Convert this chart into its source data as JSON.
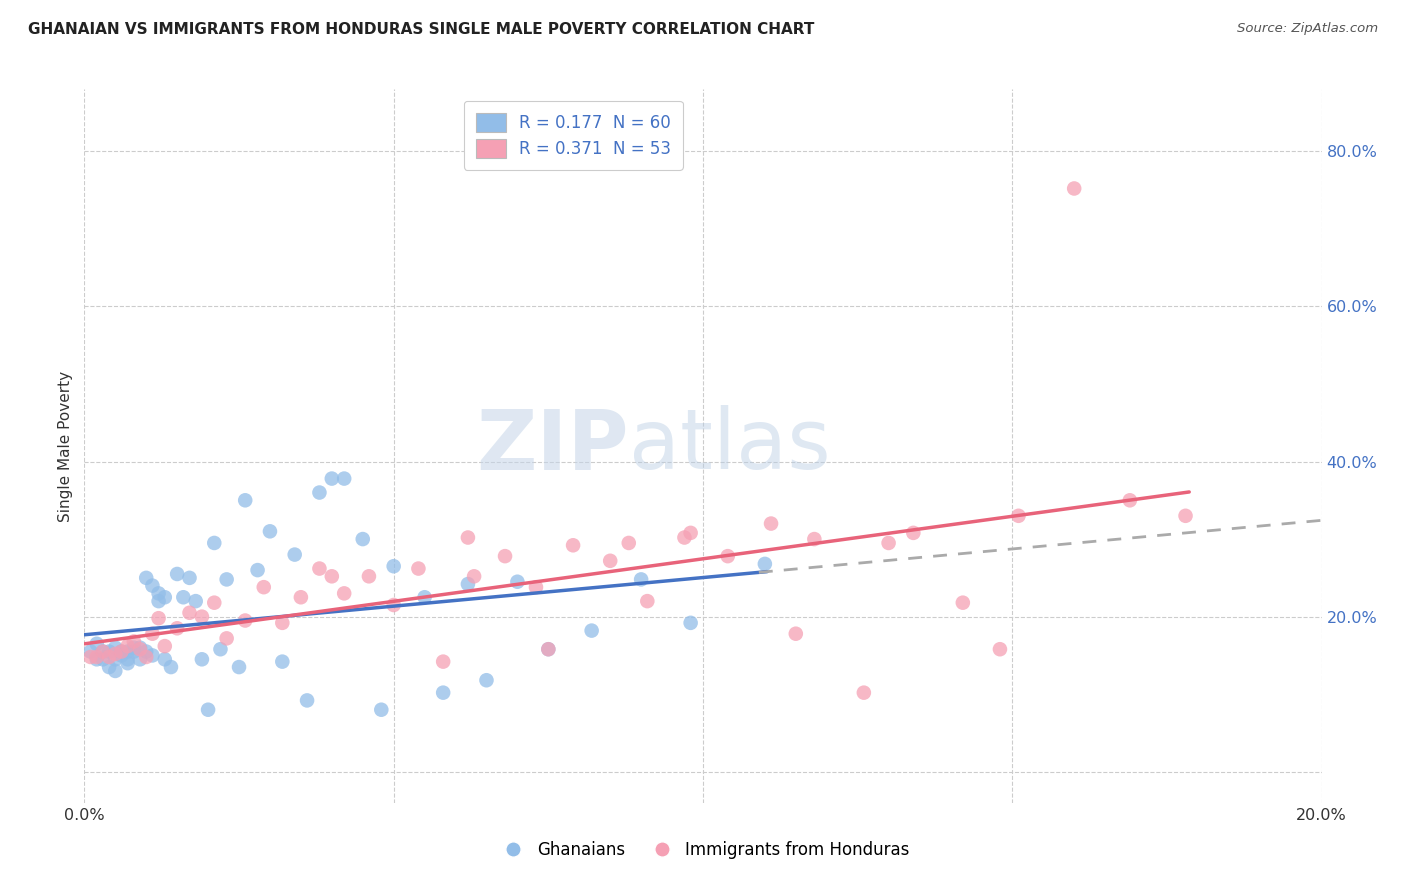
{
  "title": "GHANAIAN VS IMMIGRANTS FROM HONDURAS SINGLE MALE POVERTY CORRELATION CHART",
  "source": "Source: ZipAtlas.com",
  "ylabel": "Single Male Poverty",
  "ytick_vals": [
    0.0,
    0.2,
    0.4,
    0.6,
    0.8
  ],
  "ytick_labels": [
    "",
    "20.0%",
    "40.0%",
    "60.0%",
    "80.0%"
  ],
  "xtick_vals": [
    0.0,
    0.05,
    0.1,
    0.15,
    0.2
  ],
  "xtick_labels": [
    "0.0%",
    "",
    "",
    "",
    "20.0%"
  ],
  "xlim": [
    0.0,
    0.2
  ],
  "ylim": [
    -0.04,
    0.88
  ],
  "watermark_zip": "ZIP",
  "watermark_atlas": "atlas",
  "legend_label1": "R = 0.177  N = 60",
  "legend_label2": "R = 0.371  N = 53",
  "blue_color": "#92BDE8",
  "pink_color": "#F5A0B4",
  "line_blue": "#4472C4",
  "line_pink": "#E8637A",
  "line_dashed_color": "#AAAAAA",
  "legend_text_color": "#4472C4",
  "ytick_color": "#4472C4",
  "ghanaians_x": [
    0.001,
    0.002,
    0.002,
    0.003,
    0.003,
    0.004,
    0.004,
    0.005,
    0.005,
    0.005,
    0.006,
    0.006,
    0.007,
    0.007,
    0.007,
    0.008,
    0.008,
    0.009,
    0.009,
    0.01,
    0.01,
    0.011,
    0.011,
    0.012,
    0.012,
    0.013,
    0.013,
    0.014,
    0.015,
    0.016,
    0.017,
    0.018,
    0.019,
    0.02,
    0.021,
    0.022,
    0.023,
    0.025,
    0.026,
    0.028,
    0.03,
    0.032,
    0.034,
    0.036,
    0.038,
    0.04,
    0.042,
    0.045,
    0.048,
    0.05,
    0.055,
    0.058,
    0.062,
    0.065,
    0.07,
    0.075,
    0.082,
    0.09,
    0.098,
    0.11
  ],
  "ghanaians_y": [
    0.155,
    0.145,
    0.165,
    0.145,
    0.155,
    0.135,
    0.155,
    0.145,
    0.16,
    0.13,
    0.15,
    0.155,
    0.145,
    0.155,
    0.14,
    0.155,
    0.16,
    0.145,
    0.16,
    0.155,
    0.25,
    0.24,
    0.15,
    0.22,
    0.23,
    0.225,
    0.145,
    0.135,
    0.255,
    0.225,
    0.25,
    0.22,
    0.145,
    0.08,
    0.295,
    0.158,
    0.248,
    0.135,
    0.35,
    0.26,
    0.31,
    0.142,
    0.28,
    0.092,
    0.36,
    0.378,
    0.378,
    0.3,
    0.08,
    0.265,
    0.225,
    0.102,
    0.242,
    0.118,
    0.245,
    0.158,
    0.182,
    0.248,
    0.192,
    0.268
  ],
  "honduras_x": [
    0.001,
    0.002,
    0.003,
    0.004,
    0.005,
    0.006,
    0.007,
    0.008,
    0.009,
    0.01,
    0.011,
    0.012,
    0.013,
    0.015,
    0.017,
    0.019,
    0.021,
    0.023,
    0.026,
    0.029,
    0.032,
    0.035,
    0.038,
    0.042,
    0.046,
    0.05,
    0.054,
    0.058,
    0.063,
    0.068,
    0.073,
    0.079,
    0.085,
    0.091,
    0.097,
    0.104,
    0.111,
    0.118,
    0.126,
    0.134,
    0.142,
    0.151,
    0.16,
    0.169,
    0.178,
    0.115,
    0.13,
    0.148,
    0.098,
    0.075,
    0.062,
    0.04,
    0.088
  ],
  "honduras_y": [
    0.148,
    0.148,
    0.155,
    0.148,
    0.152,
    0.155,
    0.162,
    0.168,
    0.158,
    0.148,
    0.178,
    0.198,
    0.162,
    0.185,
    0.205,
    0.2,
    0.218,
    0.172,
    0.195,
    0.238,
    0.192,
    0.225,
    0.262,
    0.23,
    0.252,
    0.215,
    0.262,
    0.142,
    0.252,
    0.278,
    0.238,
    0.292,
    0.272,
    0.22,
    0.302,
    0.278,
    0.32,
    0.3,
    0.102,
    0.308,
    0.218,
    0.33,
    0.752,
    0.35,
    0.33,
    0.178,
    0.295,
    0.158,
    0.308,
    0.158,
    0.302,
    0.252,
    0.295
  ]
}
